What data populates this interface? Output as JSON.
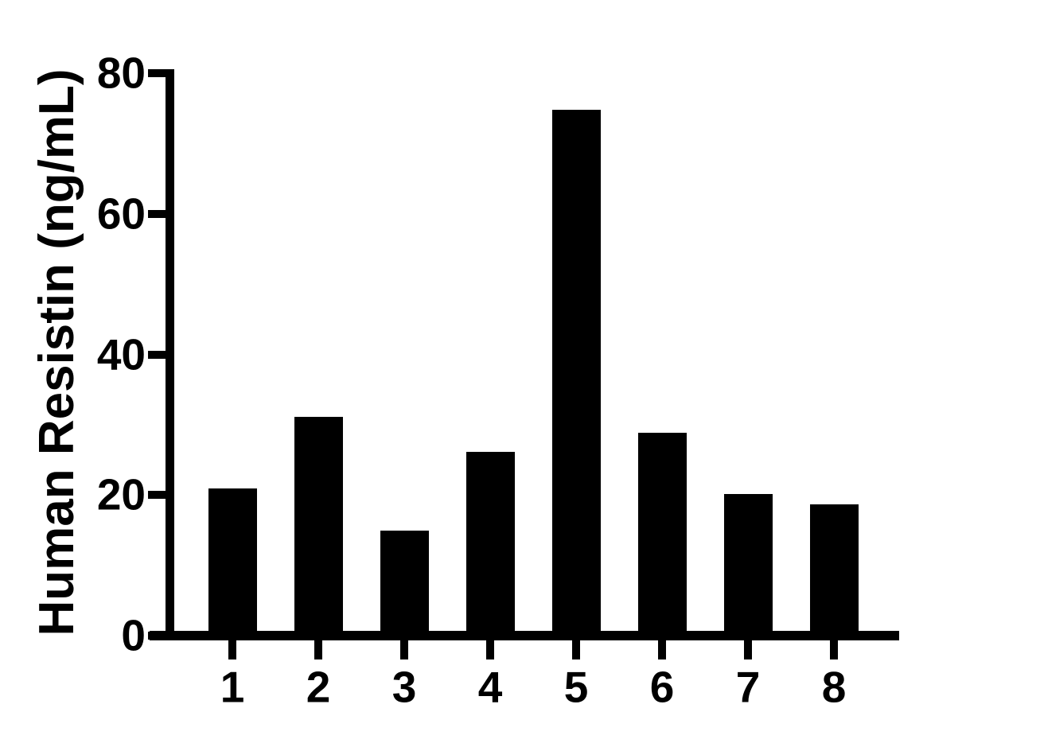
{
  "chart_data": {
    "type": "bar",
    "title": "",
    "xlabel": "",
    "ylabel": "Human Resistin (ng/mL)",
    "categories": [
      "1",
      "2",
      "3",
      "4",
      "5",
      "6",
      "7",
      "8"
    ],
    "values": [
      20.9,
      31.1,
      14.9,
      26.1,
      74.8,
      28.9,
      20.1,
      18.7
    ],
    "series": [
      {
        "name": "Human Resistin (ng/mL)",
        "values": [
          20.9,
          31.1,
          14.9,
          26.1,
          74.8,
          28.9,
          20.1,
          18.7
        ]
      }
    ],
    "ylim": [
      0,
      80
    ],
    "yticks": [
      0,
      20,
      40,
      60,
      80
    ],
    "grid": false,
    "legend_position": "none",
    "bar_color": "#000000",
    "axis_color": "#000000",
    "background_color": "#ffffff"
  }
}
